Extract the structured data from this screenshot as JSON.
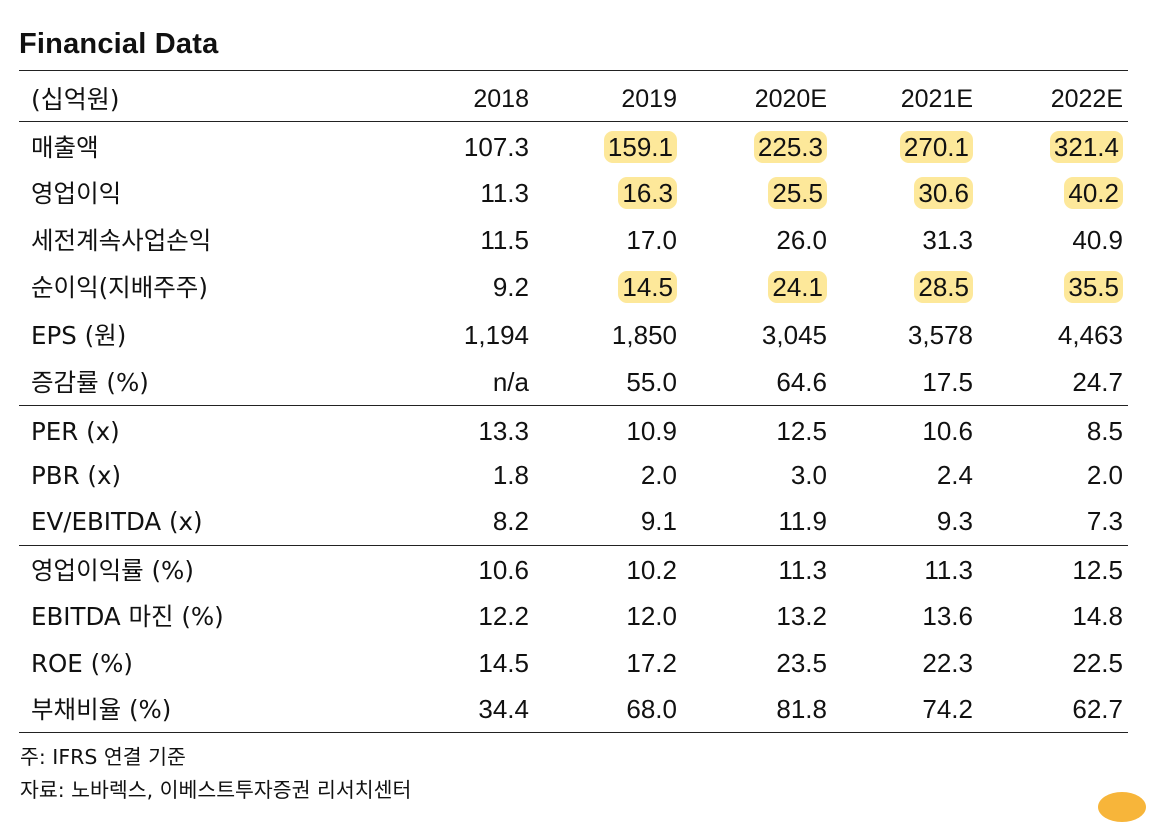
{
  "title": "Financial Data",
  "header": {
    "label": "(십억원)",
    "years": [
      "2018",
      "2019",
      "2020E",
      "2021E",
      "2022E"
    ]
  },
  "rows": [
    {
      "label": "매출액",
      "values": [
        "107.3",
        "159.1",
        "225.3",
        "270.1",
        "321.4"
      ],
      "highlight": [
        false,
        true,
        true,
        true,
        true
      ]
    },
    {
      "label": "영업이익",
      "values": [
        "11.3",
        "16.3",
        "25.5",
        "30.6",
        "40.2"
      ],
      "highlight": [
        false,
        true,
        true,
        true,
        true
      ]
    },
    {
      "label": "세전계속사업손익",
      "values": [
        "11.5",
        "17.0",
        "26.0",
        "31.3",
        "40.9"
      ],
      "highlight": [
        false,
        false,
        false,
        false,
        false
      ]
    },
    {
      "label": "순이익(지배주주)",
      "values": [
        "9.2",
        "14.5",
        "24.1",
        "28.5",
        "35.5"
      ],
      "highlight": [
        false,
        true,
        true,
        true,
        true
      ]
    },
    {
      "label": "EPS (원)",
      "values": [
        "1,194",
        "1,850",
        "3,045",
        "3,578",
        "4,463"
      ],
      "highlight": [
        false,
        false,
        false,
        false,
        false
      ]
    },
    {
      "label": "증감률 (%)",
      "values": [
        "n/a",
        "55.0",
        "64.6",
        "17.5",
        "24.7"
      ],
      "highlight": [
        false,
        false,
        false,
        false,
        false
      ]
    },
    {
      "label": "PER (x)",
      "values": [
        "13.3",
        "10.9",
        "12.5",
        "10.6",
        "8.5"
      ],
      "highlight": [
        false,
        false,
        false,
        false,
        false
      ]
    },
    {
      "label": "PBR (x)",
      "values": [
        "1.8",
        "2.0",
        "3.0",
        "2.4",
        "2.0"
      ],
      "highlight": [
        false,
        false,
        false,
        false,
        false
      ]
    },
    {
      "label": "EV/EBITDA (x)",
      "values": [
        "8.2",
        "9.1",
        "11.9",
        "9.3",
        "7.3"
      ],
      "highlight": [
        false,
        false,
        false,
        false,
        false
      ]
    },
    {
      "label": "영업이익률 (%)",
      "values": [
        "10.6",
        "10.2",
        "11.3",
        "11.3",
        "12.5"
      ],
      "highlight": [
        false,
        false,
        false,
        false,
        false
      ]
    },
    {
      "label": "EBITDA 마진 (%)",
      "values": [
        "12.2",
        "12.0",
        "13.2",
        "13.6",
        "14.8"
      ],
      "highlight": [
        false,
        false,
        false,
        false,
        false
      ]
    },
    {
      "label": "ROE (%)",
      "values": [
        "14.5",
        "17.2",
        "23.5",
        "22.3",
        "22.5"
      ],
      "highlight": [
        false,
        false,
        false,
        false,
        false
      ]
    },
    {
      "label": "부채비율 (%)",
      "values": [
        "34.4",
        "68.0",
        "81.8",
        "74.2",
        "62.7"
      ],
      "highlight": [
        false,
        false,
        false,
        false,
        false
      ]
    }
  ],
  "notes": [
    "주: IFRS 연결 기준",
    "자료: 노바렉스, 이베스트투자증권 리서치센터"
  ],
  "colors": {
    "highlight": "#fde89a",
    "rule": "#222222",
    "corner_accent": "#f7b53a"
  }
}
